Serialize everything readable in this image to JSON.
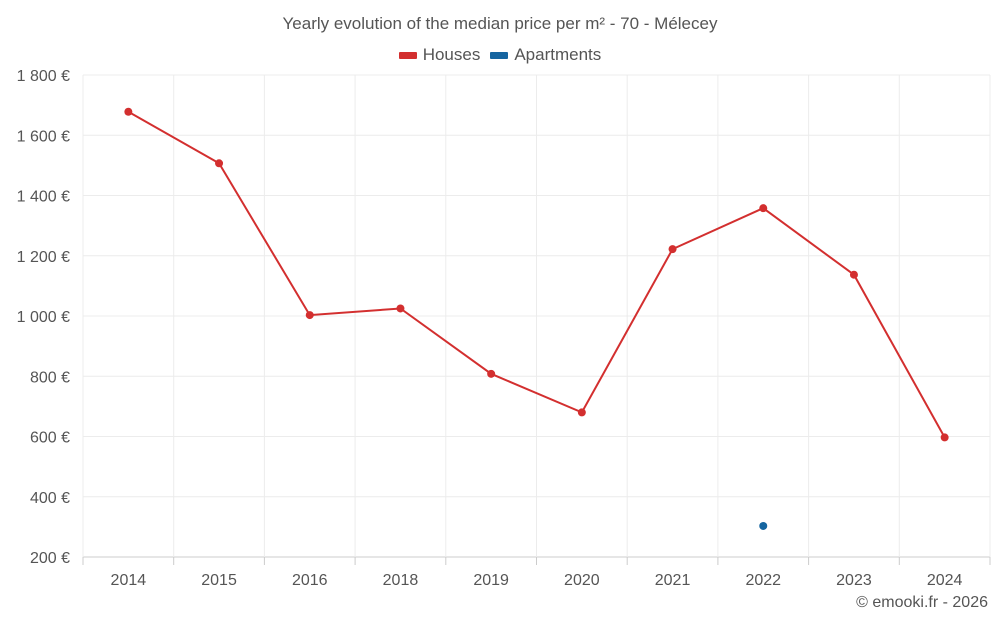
{
  "chart_data": {
    "type": "line",
    "title": "Yearly evolution of the median price per m² - 70 - Mélecey",
    "categories": [
      "2014",
      "2015",
      "2016",
      "2018",
      "2019",
      "2020",
      "2021",
      "2022",
      "2023",
      "2024"
    ],
    "series": [
      {
        "name": "Houses",
        "color": "#d32f2f",
        "values": [
          1678,
          1507,
          1003,
          1025,
          808,
          680,
          1222,
          1358,
          1137,
          597
        ]
      },
      {
        "name": "Apartments",
        "color": "#1565a0",
        "values": [
          null,
          null,
          null,
          null,
          null,
          null,
          null,
          303,
          null,
          null
        ]
      }
    ],
    "ylim": [
      200,
      1800
    ],
    "yticks": [
      200,
      400,
      600,
      800,
      1000,
      1200,
      1400,
      1600,
      1800
    ],
    "ytick_labels": [
      "200 €",
      "400 €",
      "600 €",
      "800 €",
      "1 000 €",
      "1 200 €",
      "1 400 €",
      "1 600 €",
      "1 800 €"
    ],
    "xlabel": "",
    "ylabel": "",
    "grid": true,
    "legend_position": "top-center"
  },
  "credit": "© emooki.fr - 2026"
}
